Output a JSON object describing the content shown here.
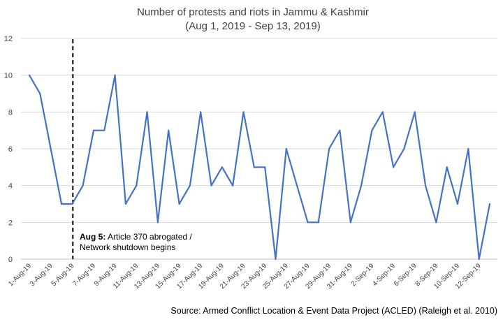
{
  "chart_data": {
    "type": "line",
    "title": "Number of protests and riots in Jammu & Kashmir",
    "subtitle": "(Aug 1, 2019 - Sep 13, 2019)",
    "xlabel": "",
    "ylabel": "",
    "ylim": [
      0,
      12
    ],
    "yticks": [
      0,
      2,
      4,
      6,
      8,
      10,
      12
    ],
    "grid": true,
    "x": [
      "1-Aug-19",
      "2-Aug-19",
      "3-Aug-19",
      "4-Aug-19",
      "5-Aug-19",
      "6-Aug-19",
      "7-Aug-19",
      "8-Aug-19",
      "9-Aug-19",
      "10-Aug-19",
      "11-Aug-19",
      "12-Aug-19",
      "13-Aug-19",
      "14-Aug-19",
      "15-Aug-19",
      "16-Aug-19",
      "17-Aug-19",
      "18-Aug-19",
      "19-Aug-19",
      "20-Aug-19",
      "21-Aug-19",
      "22-Aug-19",
      "23-Aug-19",
      "24-Aug-19",
      "25-Aug-19",
      "26-Aug-19",
      "27-Aug-19",
      "28-Aug-19",
      "29-Aug-19",
      "30-Aug-19",
      "31-Aug-19",
      "1-Sep-19",
      "2-Sep-19",
      "3-Sep-19",
      "4-Sep-19",
      "5-Sep-19",
      "6-Sep-19",
      "7-Sep-19",
      "8-Sep-19",
      "9-Sep-19",
      "10-Sep-19",
      "11-Sep-19",
      "12-Sep-19",
      "13-Sep-19"
    ],
    "xtick_labels": [
      "1-Aug-19",
      "3-Aug-19",
      "5-Aug-19",
      "7-Aug-19",
      "9-Aug-19",
      "11-Aug-19",
      "13-Aug-19",
      "15-Aug-19",
      "17-Aug-19",
      "19-Aug-19",
      "21-Aug-19",
      "23-Aug-19",
      "25-Aug-19",
      "27-Aug-19",
      "29-Aug-19",
      "31-Aug-19",
      "2-Sep-19",
      "4-Sep-19",
      "6-Sep-19",
      "8-Sep-19",
      "10-Sep-19",
      "12-Sep-19"
    ],
    "series": [
      {
        "values": [
          10,
          9,
          6,
          3,
          3,
          4,
          7,
          7,
          10,
          3,
          4,
          8,
          2,
          7,
          3,
          4,
          8,
          4,
          5,
          4,
          8,
          5,
          5,
          0,
          6,
          4,
          2,
          2,
          6,
          7,
          2,
          4,
          7,
          8,
          5,
          6,
          8,
          4,
          2,
          5,
          3,
          6,
          0,
          3
        ],
        "color": "#4472c4"
      }
    ],
    "reference_line": {
      "x": "5-Aug-19",
      "style": "dashed",
      "color": "#000000"
    },
    "annotation": {
      "bold": "Aug 5:",
      "line1_rest": " Article 370 abrogated /",
      "line2": "Network shutdown begins"
    },
    "source": "Source: Armed Conflict Location & Event Data Project (ACLED) (Raleigh et al. 2010)"
  }
}
